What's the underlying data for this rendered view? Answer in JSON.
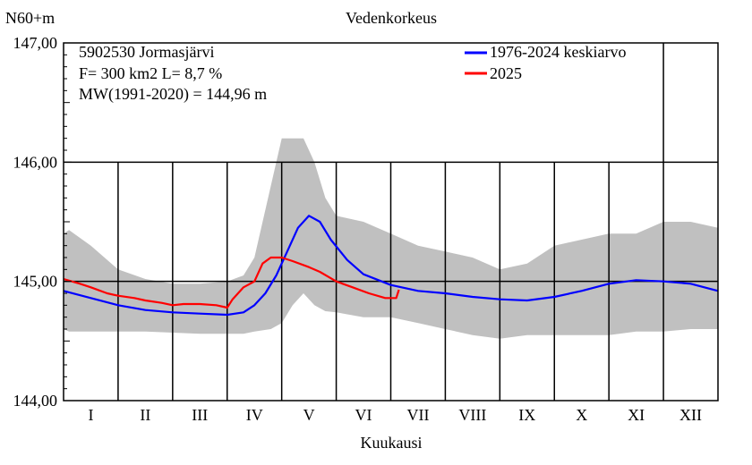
{
  "chart_data": {
    "type": "line",
    "title": "Vedenkorkeus",
    "ylabel": "N60+m",
    "xlabel": "Kuukausi",
    "ylim": [
      144.0,
      147.0
    ],
    "xlim": [
      0,
      12
    ],
    "y_ticks": [
      "144,00",
      "145,00",
      "146,00",
      "147,00"
    ],
    "y_tick_values": [
      144.0,
      145.0,
      146.0,
      147.0
    ],
    "x_tick_labels": [
      "I",
      "II",
      "III",
      "IV",
      "V",
      "VI",
      "VII",
      "VIII",
      "IX",
      "X",
      "XI",
      "XII"
    ],
    "grid": true,
    "legend_position": "top-right",
    "info": {
      "line1": "5902530 Jormasjärvi",
      "line2": "F=    300 km2 L=  8,7 %",
      "line3": "MW(1991-2020) = 144,96 m"
    },
    "band": {
      "name": "range",
      "color": "#c0c0c0",
      "x": [
        0,
        0.1,
        0.5,
        1.0,
        1.5,
        2.0,
        2.5,
        3.0,
        3.3,
        3.5,
        3.8,
        4.0,
        4.2,
        4.4,
        4.6,
        4.8,
        5.0,
        5.5,
        6.0,
        6.5,
        7.0,
        7.5,
        8.0,
        8.5,
        9.0,
        9.5,
        10.0,
        10.5,
        11.0,
        11.5,
        12.0
      ],
      "upper": [
        145.4,
        145.43,
        145.3,
        145.1,
        145.02,
        144.98,
        144.98,
        145.0,
        145.05,
        145.2,
        145.8,
        146.2,
        146.2,
        146.2,
        146.0,
        145.7,
        145.55,
        145.5,
        145.4,
        145.3,
        145.25,
        145.2,
        145.1,
        145.15,
        145.3,
        145.35,
        145.4,
        145.4,
        145.5,
        145.5,
        145.45
      ],
      "lower": [
        144.6,
        144.58,
        144.58,
        144.58,
        144.58,
        144.57,
        144.56,
        144.56,
        144.56,
        144.58,
        144.6,
        144.65,
        144.8,
        144.9,
        144.8,
        144.75,
        144.74,
        144.7,
        144.7,
        144.65,
        144.6,
        144.55,
        144.52,
        144.55,
        144.55,
        144.55,
        144.55,
        144.58,
        144.58,
        144.6,
        144.6
      ]
    },
    "series": [
      {
        "name": "1976-2024 keskiarvo",
        "color": "#0000ff",
        "x": [
          0,
          0.5,
          1.0,
          1.5,
          2.0,
          2.5,
          3.0,
          3.3,
          3.5,
          3.7,
          3.9,
          4.1,
          4.3,
          4.5,
          4.7,
          4.9,
          5.2,
          5.5,
          6.0,
          6.5,
          7.0,
          7.5,
          8.0,
          8.5,
          9.0,
          9.5,
          10.0,
          10.5,
          11.0,
          11.5,
          12.0
        ],
        "y": [
          144.92,
          144.86,
          144.8,
          144.76,
          144.74,
          144.73,
          144.72,
          144.74,
          144.8,
          144.9,
          145.05,
          145.25,
          145.45,
          145.55,
          145.5,
          145.35,
          145.18,
          145.06,
          144.97,
          144.92,
          144.9,
          144.87,
          144.85,
          144.84,
          144.87,
          144.92,
          144.98,
          145.01,
          145.0,
          144.98,
          144.92
        ]
      },
      {
        "name": "2025",
        "color": "#ff0000",
        "x": [
          0,
          0.3,
          0.5,
          0.8,
          1.0,
          1.3,
          1.5,
          1.8,
          2.0,
          2.2,
          2.5,
          2.8,
          3.0,
          3.1,
          3.3,
          3.5,
          3.65,
          3.8,
          4.0,
          4.2,
          4.5,
          4.7,
          5.0,
          5.3,
          5.6,
          5.9,
          6.1,
          6.15
        ],
        "y": [
          145.02,
          144.98,
          144.95,
          144.9,
          144.88,
          144.86,
          144.84,
          144.82,
          144.8,
          144.81,
          144.81,
          144.8,
          144.78,
          144.85,
          144.95,
          145.0,
          145.15,
          145.2,
          145.2,
          145.17,
          145.12,
          145.08,
          145.0,
          144.95,
          144.9,
          144.86,
          144.86,
          144.93
        ]
      }
    ]
  }
}
